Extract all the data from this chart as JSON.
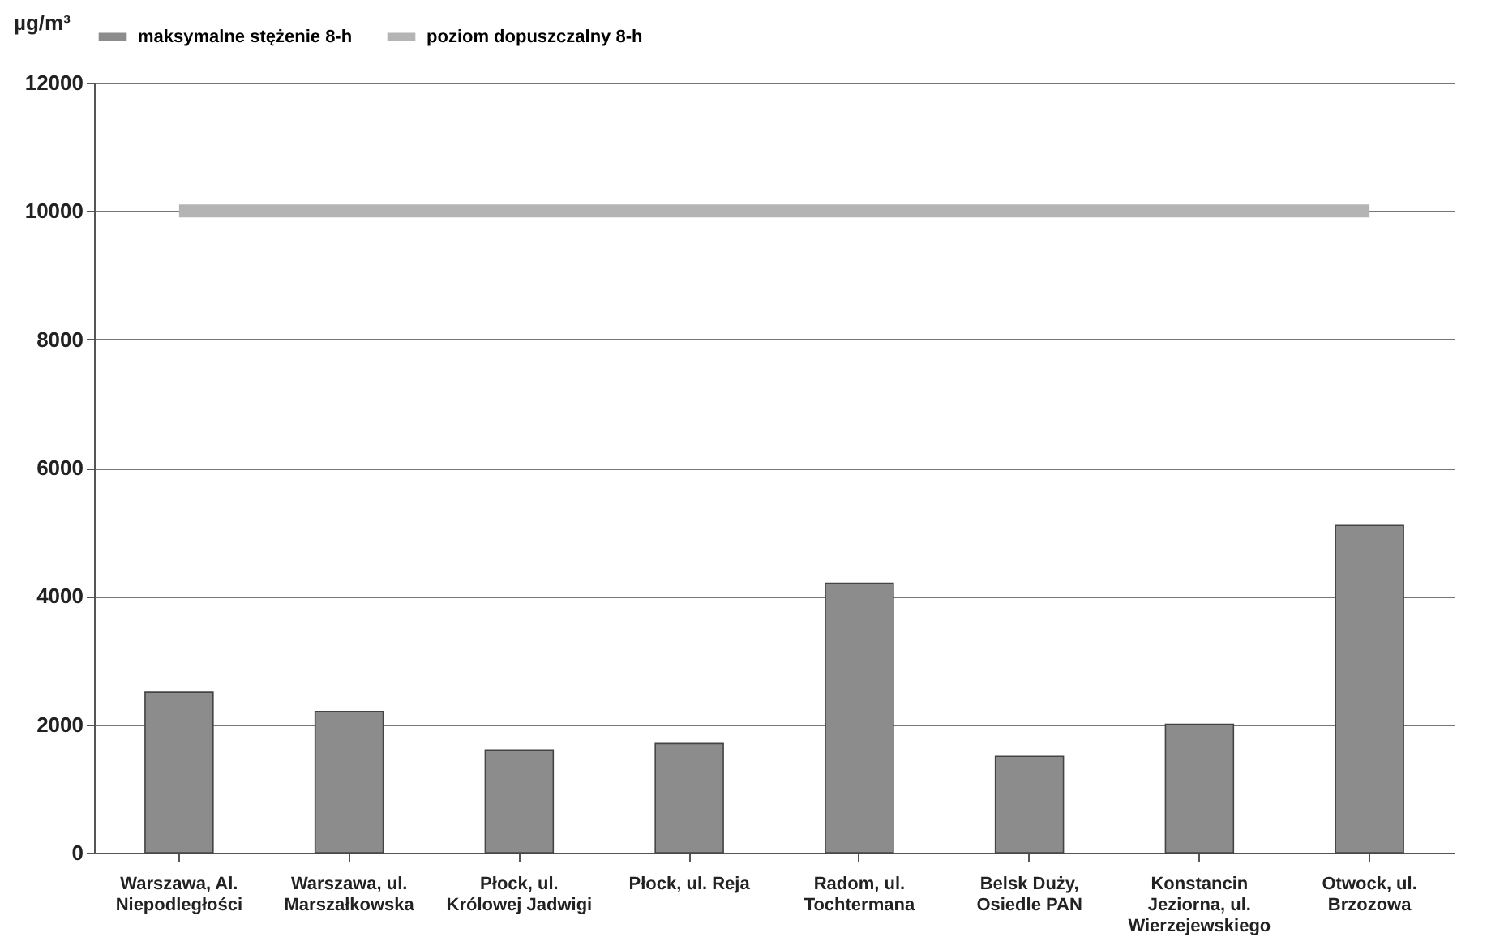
{
  "chart_data": {
    "type": "bar",
    "ylabel": "µg/m³",
    "categories": [
      "Warszawa, Al. Niepodległości",
      "Warszawa, ul. Marszałkowska",
      "Płock, ul. Królowej Jadwigi",
      "Płock, ul. Reja",
      "Radom, ul. Tochtermana",
      "Belsk Duży, Osiedle PAN",
      "Konstancin Jeziorna, ul. Wierzejewskiego",
      "Otwock, ul. Brzozowa"
    ],
    "series": [
      {
        "name": "maksymalne stężenie 8-h",
        "color": "#8c8c8c",
        "values": [
          2500,
          2200,
          1600,
          1700,
          4200,
          1500,
          2000,
          5100
        ]
      },
      {
        "name": "poziom dopuszczalny 8-h",
        "type": "line",
        "color": "#b4b4b4",
        "values": [
          10000,
          10000,
          10000,
          10000,
          10000,
          10000,
          10000,
          10000
        ]
      }
    ],
    "ylim": [
      0,
      12000
    ],
    "yticks": [
      0,
      2000,
      4000,
      6000,
      8000,
      10000,
      12000
    ],
    "grid": "y",
    "legend": "top"
  }
}
